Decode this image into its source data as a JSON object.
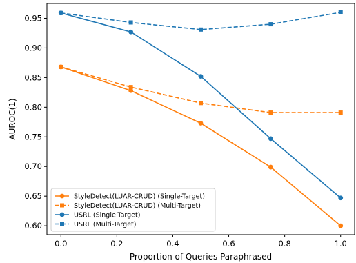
{
  "chart_data": {
    "type": "line",
    "xlabel": "Proportion of Queries Paraphrased",
    "ylabel": "AUROC(1)",
    "xlim": [
      -0.05,
      1.05
    ],
    "ylim": [
      0.585,
      0.975
    ],
    "xticks": [
      0.0,
      0.2,
      0.4,
      0.6,
      0.8,
      1.0
    ],
    "xtick_labels": [
      "0.0",
      "0.2",
      "0.4",
      "0.6",
      "0.8",
      "1.0"
    ],
    "yticks": [
      0.6,
      0.65,
      0.7,
      0.75,
      0.8,
      0.85,
      0.9,
      0.95
    ],
    "ytick_labels": [
      "0.60",
      "0.65",
      "0.70",
      "0.75",
      "0.80",
      "0.85",
      "0.90",
      "0.95"
    ],
    "x": [
      0.0,
      0.25,
      0.5,
      0.75,
      1.0
    ],
    "grid": false,
    "legend_position": "lower-left",
    "series": [
      {
        "name": "StyleDetect(LUAR-CRUD) (Single-Target)",
        "color": "#ff7f0e",
        "marker": "circle",
        "linestyle": "solid",
        "values": [
          0.868,
          0.828,
          0.773,
          0.699,
          0.6
        ]
      },
      {
        "name": "StyleDetect(LUAR-CRUD) (Multi-Target)",
        "color": "#ff7f0e",
        "marker": "square",
        "linestyle": "dashed",
        "values": [
          0.868,
          0.834,
          0.807,
          0.791,
          0.791
        ]
      },
      {
        "name": "USRL (Single-Target)",
        "color": "#1f77b4",
        "marker": "circle",
        "linestyle": "solid",
        "values": [
          0.959,
          0.927,
          0.852,
          0.747,
          0.647
        ]
      },
      {
        "name": "USRL (Multi-Target)",
        "color": "#1f77b4",
        "marker": "square",
        "linestyle": "dashed",
        "values": [
          0.959,
          0.943,
          0.931,
          0.94,
          0.96
        ]
      }
    ]
  }
}
